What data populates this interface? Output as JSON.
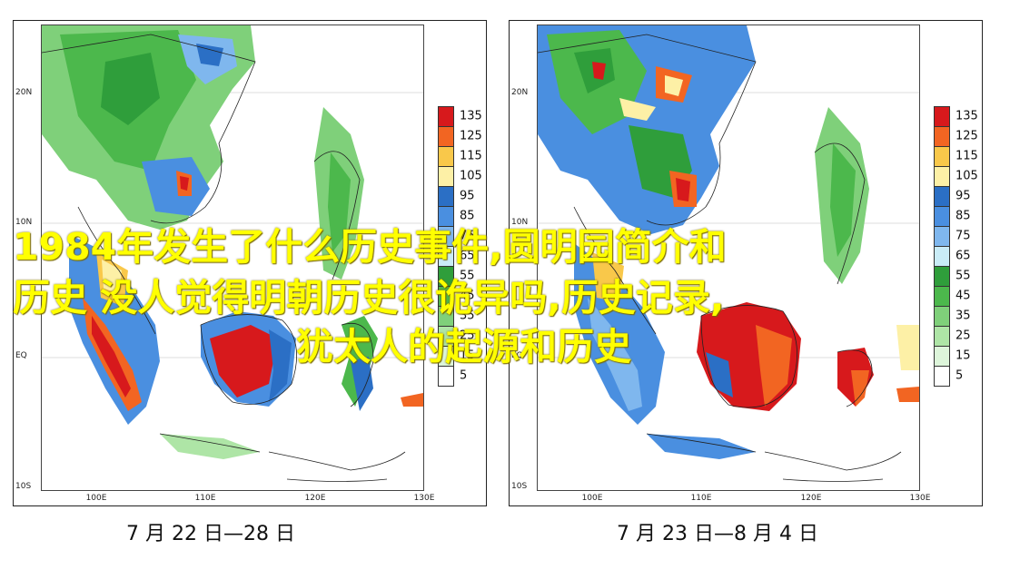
{
  "panels": [
    {
      "id": "left",
      "caption": "7 月 22 日—28 日",
      "lat_labels": [
        "20N",
        "10N",
        "EQ",
        "10S"
      ],
      "lon_labels": [
        "100E",
        "110E",
        "120E",
        "130E"
      ],
      "colorbar_levels": [
        "135",
        "125",
        "115",
        "105",
        "95",
        "85",
        "75",
        "65",
        "55",
        "45",
        "35",
        "25",
        "15",
        "5"
      ]
    },
    {
      "id": "right",
      "caption": "7 月 23 日—8 月 4 日",
      "lat_labels": [
        "20N",
        "10N",
        "EQ",
        "10S"
      ],
      "lon_labels": [
        "100E",
        "110E",
        "120E",
        "130E"
      ],
      "colorbar_levels": [
        "135",
        "125",
        "115",
        "105",
        "95",
        "85",
        "75",
        "65",
        "55",
        "45",
        "35",
        "25",
        "15",
        "5"
      ]
    }
  ],
  "colorbar_colors": [
    "#d7191c",
    "#f26522",
    "#f9c84a",
    "#fdf0a6",
    "#2b6fc5",
    "#4a8fe0",
    "#7fb7ee",
    "#c9ecf7",
    "#2f9e3b",
    "#4cb84c",
    "#7fd07a",
    "#aee5a6",
    "#ddf5da",
    "#ffffff"
  ],
  "overlay_lines": [
    "1984年发生了什么历史事件,圆明园简介和",
    "历史 没人觉得明朝历史很诡异吗,历史记录,",
    "犹太人的起源和历史"
  ]
}
